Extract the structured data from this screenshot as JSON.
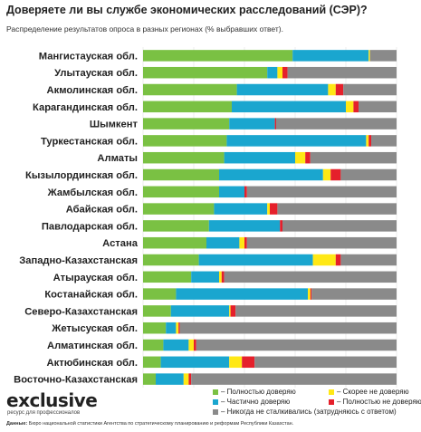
{
  "title": "Доверяете ли вы службе экономических расследований (СЭР)?",
  "subtitle": "Распределение результатов опроса в разных регионах (% выбравших ответ).",
  "logo": {
    "text": "exclusive",
    "subtitle": "ресурс для профессионалов"
  },
  "source": {
    "label": "Данные:",
    "text": "Бюро национальной статистики Агентства по стратегическому планированию и реформам Республики Казахстан."
  },
  "colors": {
    "full_trust": "#7ac143",
    "partial_trust": "#1aa6cf",
    "rather_not": "#ffe815",
    "no_trust": "#e5202b",
    "never_faced": "#8a8a8a"
  },
  "chart_data": {
    "type": "bar",
    "orientation": "horizontal",
    "stacked": true,
    "categories": [
      "Мангистауская обл.",
      "Улытауская обл.",
      "Акмолинская обл.",
      "Карагандинская обл.",
      "Шымкент",
      "Туркестанская обл.",
      "Алматы",
      "Кызылординская обл.",
      "Жамбылская обл.",
      "Абайская обл.",
      "Павлодарская обл.",
      "Астана",
      "Западно-Казахстанская",
      "Атырауская обл.",
      "Костанайская обл.",
      "Северо-Казахстанская",
      "Жетысуская обл.",
      "Алматинская обл.",
      "Актюбинская обл.",
      "Восточно-Казахстанская"
    ],
    "series": [
      {
        "name": "Полностью доверяю",
        "values": [
          59,
          49,
          37,
          35,
          34,
          33,
          32,
          30,
          30,
          28,
          26,
          25,
          22,
          19,
          13,
          11,
          9,
          8,
          7,
          5
        ]
      },
      {
        "name": "Частично доверяю",
        "values": [
          30,
          4,
          36,
          45,
          18,
          55,
          28,
          41,
          10,
          21,
          28,
          13,
          45,
          11,
          52,
          23,
          4,
          10,
          27,
          11
        ]
      },
      {
        "name": "Скорее не доверяю",
        "values": [
          0.5,
          2,
          3,
          3,
          0,
          1,
          4,
          3,
          0,
          1,
          0,
          2,
          9,
          1,
          1,
          0.5,
          1,
          2,
          5,
          2
        ]
      },
      {
        "name": "Полностью не доверяю",
        "values": [
          0,
          2,
          3,
          2,
          0.5,
          1,
          2,
          4,
          1,
          3,
          1,
          1,
          2,
          1,
          0.5,
          2,
          0.5,
          1,
          5,
          1
        ]
      },
      {
        "name": "Никогда не сталкивались (затрудняюсь с ответом)",
        "values": [
          10.5,
          43,
          21,
          15,
          47.5,
          10,
          34,
          22,
          59,
          47,
          45,
          59,
          22,
          68,
          33.5,
          63.5,
          85.5,
          79,
          56,
          81
        ]
      }
    ],
    "xlim": [
      0,
      100
    ],
    "xticks": [
      0,
      20,
      40,
      60,
      80,
      100
    ],
    "grid": true,
    "legend_position": "bottom-right"
  },
  "legend": {
    "items": [
      {
        "label": "– Полностью доверяю",
        "color_key": "full_trust"
      },
      {
        "label": "– Скорее не доверяю",
        "color_key": "rather_not"
      },
      {
        "label": "– Частично доверяю",
        "color_key": "partial_trust"
      },
      {
        "label": "– Полностью не доверяю",
        "color_key": "no_trust"
      },
      {
        "label": "– Никогда не сталкивались (затрудняюсь с ответом)",
        "color_key": "never_faced"
      }
    ]
  }
}
